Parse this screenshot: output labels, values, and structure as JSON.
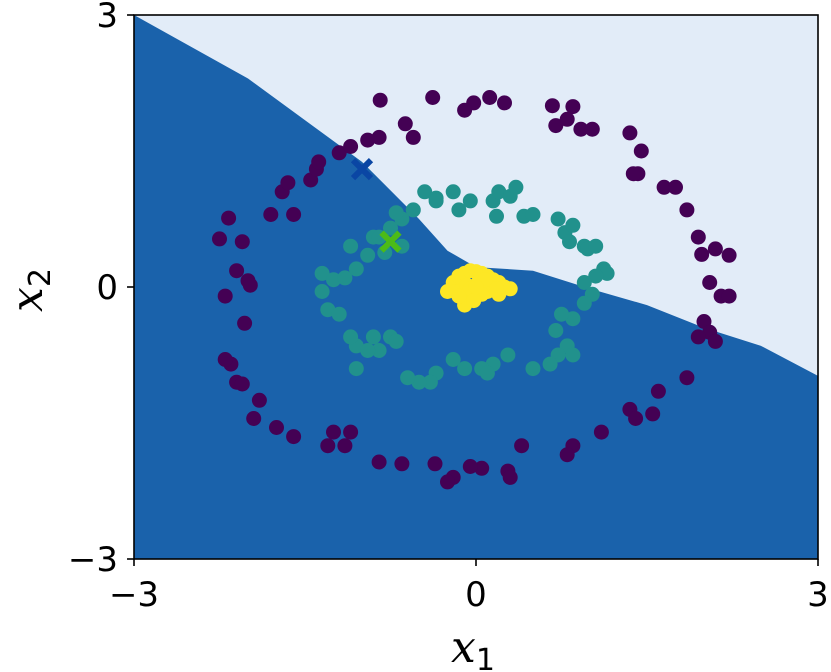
{
  "chart_data": {
    "type": "scatter",
    "title": "",
    "xlabel": "x",
    "xlabel_sub": "1",
    "ylabel": "x",
    "ylabel_sub": "2",
    "xlim": [
      -3,
      3
    ],
    "ylim": [
      -3,
      3
    ],
    "xticks": [
      "−3",
      "0",
      "3"
    ],
    "yticks": [
      "−3",
      "0",
      "3"
    ],
    "grid": false,
    "legend": "none",
    "decision_regions": {
      "upper_color": "#e2ecf8",
      "lower_color": "#1a62ab",
      "boundary": [
        [
          -3.0,
          3.0
        ],
        [
          -2.0,
          2.3
        ],
        [
          -1.0,
          1.38
        ],
        [
          -0.5,
          0.75
        ],
        [
          -0.25,
          0.4
        ],
        [
          0.0,
          0.22
        ],
        [
          0.5,
          0.18
        ],
        [
          1.0,
          -0.02
        ],
        [
          1.5,
          -0.2
        ],
        [
          2.0,
          -0.45
        ],
        [
          2.5,
          -0.65
        ],
        [
          3.0,
          -0.98
        ]
      ]
    },
    "series": [
      {
        "color": "#440154",
        "marker": "circle",
        "points": [
          [
            -0.84,
            2.06
          ],
          [
            -0.38,
            2.09
          ],
          [
            -0.02,
            2.03
          ],
          [
            0.12,
            2.09
          ],
          [
            0.25,
            2.03
          ],
          [
            0.67,
            2.0
          ],
          [
            0.85,
            1.99
          ],
          [
            0.92,
            1.74
          ],
          [
            1.35,
            1.7
          ],
          [
            1.45,
            1.5
          ],
          [
            0.7,
            1.78
          ],
          [
            0.8,
            1.85
          ],
          [
            1.02,
            1.74
          ],
          [
            1.42,
            1.25
          ],
          [
            1.38,
            1.25
          ],
          [
            1.65,
            1.1
          ],
          [
            1.75,
            1.1
          ],
          [
            1.85,
            0.85
          ],
          [
            1.95,
            0.55
          ],
          [
            2.1,
            0.42
          ],
          [
            1.98,
            0.36
          ],
          [
            2.22,
            0.35
          ],
          [
            2.05,
            0.05
          ],
          [
            2.15,
            -0.1
          ],
          [
            2.22,
            -0.1
          ],
          [
            2.0,
            -0.38
          ],
          [
            2.05,
            -0.5
          ],
          [
            2.1,
            -0.6
          ],
          [
            1.95,
            -0.55
          ],
          [
            1.85,
            -1.0
          ],
          [
            1.6,
            -1.15
          ],
          [
            1.35,
            -1.35
          ],
          [
            1.4,
            -1.45
          ],
          [
            1.55,
            -1.4
          ],
          [
            1.1,
            -1.6
          ],
          [
            0.85,
            -1.75
          ],
          [
            0.8,
            -1.85
          ],
          [
            0.4,
            -1.75
          ],
          [
            0.28,
            -2.03
          ],
          [
            0.3,
            -2.1
          ],
          [
            0.05,
            -2.0
          ],
          [
            -0.05,
            -1.98
          ],
          [
            -0.2,
            -2.1
          ],
          [
            -0.25,
            -2.15
          ],
          [
            -0.36,
            -1.95
          ],
          [
            -0.65,
            -1.95
          ],
          [
            -0.85,
            -1.93
          ],
          [
            -1.15,
            -1.75
          ],
          [
            -1.1,
            -1.6
          ],
          [
            -1.25,
            -1.6
          ],
          [
            -1.3,
            -1.75
          ],
          [
            -1.6,
            -1.65
          ],
          [
            -1.9,
            -1.25
          ],
          [
            -1.75,
            -1.55
          ],
          [
            -1.95,
            -1.45
          ],
          [
            -2.1,
            -1.05
          ],
          [
            -2.05,
            -1.07
          ],
          [
            -2.15,
            -0.85
          ],
          [
            -2.2,
            -0.8
          ],
          [
            -2.03,
            -0.4
          ],
          [
            -2.2,
            -0.1
          ],
          [
            -2.0,
            0.07
          ],
          [
            -1.98,
            0.02
          ],
          [
            -2.1,
            0.18
          ],
          [
            -2.05,
            0.5
          ],
          [
            -2.17,
            0.76
          ],
          [
            -2.25,
            0.53
          ],
          [
            -1.8,
            0.8
          ],
          [
            -1.6,
            0.8
          ],
          [
            -1.7,
            1.05
          ],
          [
            -1.65,
            1.15
          ],
          [
            -1.45,
            1.18
          ],
          [
            -1.4,
            1.3
          ],
          [
            -1.38,
            1.38
          ],
          [
            -1.2,
            1.48
          ],
          [
            -1.1,
            1.55
          ],
          [
            -0.95,
            1.62
          ],
          [
            -0.85,
            1.65
          ],
          [
            -0.62,
            1.8
          ],
          [
            -0.55,
            1.65
          ],
          [
            -0.1,
            1.95
          ]
        ]
      },
      {
        "color": "#21918c",
        "marker": "circle",
        "points": [
          [
            -0.45,
            1.05
          ],
          [
            -0.35,
            0.98
          ],
          [
            -0.15,
            0.85
          ],
          [
            -0.05,
            0.95
          ],
          [
            0.15,
            0.95
          ],
          [
            0.2,
            1.05
          ],
          [
            0.3,
            1.0
          ],
          [
            0.35,
            1.1
          ],
          [
            0.42,
            0.78
          ],
          [
            0.5,
            0.8
          ],
          [
            0.18,
            0.78
          ],
          [
            0.72,
            0.75
          ],
          [
            0.78,
            0.6
          ],
          [
            0.85,
            0.68
          ],
          [
            0.82,
            0.5
          ],
          [
            0.95,
            0.45
          ],
          [
            0.98,
            0.42
          ],
          [
            1.05,
            0.45
          ],
          [
            1.12,
            0.2
          ],
          [
            1.15,
            0.15
          ],
          [
            1.05,
            0.12
          ],
          [
            0.95,
            0.05
          ],
          [
            1.02,
            -0.08
          ],
          [
            0.95,
            -0.18
          ],
          [
            0.85,
            -0.35
          ],
          [
            0.75,
            -0.3
          ],
          [
            0.7,
            -0.48
          ],
          [
            0.8,
            -0.65
          ],
          [
            0.72,
            -0.75
          ],
          [
            0.85,
            -0.75
          ],
          [
            0.65,
            -0.85
          ],
          [
            0.5,
            -0.9
          ],
          [
            0.28,
            -0.75
          ],
          [
            0.15,
            -0.85
          ],
          [
            0.05,
            -0.9
          ],
          [
            -0.1,
            -0.9
          ],
          [
            -0.2,
            -0.8
          ],
          [
            -0.35,
            -0.95
          ],
          [
            -0.4,
            -1.05
          ],
          [
            -0.5,
            -1.05
          ],
          [
            -0.6,
            -1.0
          ],
          [
            -0.75,
            -0.55
          ],
          [
            -0.7,
            -0.6
          ],
          [
            -0.85,
            -0.7
          ],
          [
            -0.9,
            -0.55
          ],
          [
            -1.05,
            -0.65
          ],
          [
            -0.95,
            -0.7
          ],
          [
            -1.1,
            -0.55
          ],
          [
            -1.05,
            -0.9
          ],
          [
            -1.3,
            -0.25
          ],
          [
            -1.35,
            -0.05
          ],
          [
            -1.35,
            0.15
          ],
          [
            -1.25,
            0.08
          ],
          [
            -1.2,
            -0.3
          ],
          [
            -1.15,
            0.1
          ],
          [
            -1.05,
            0.2
          ],
          [
            -0.95,
            0.35
          ],
          [
            -1.1,
            0.45
          ],
          [
            -0.9,
            0.55
          ],
          [
            -0.75,
            0.65
          ],
          [
            -0.85,
            0.55
          ],
          [
            -0.65,
            0.75
          ],
          [
            -0.7,
            0.82
          ],
          [
            -0.55,
            0.85
          ],
          [
            -0.8,
            0.38
          ],
          [
            -0.65,
            0.45
          ],
          [
            -0.2,
            1.05
          ],
          [
            -0.35,
            0.95
          ],
          [
            0.1,
            -0.95
          ]
        ]
      },
      {
        "color": "#fde725",
        "marker": "circle",
        "points": [
          [
            -0.25,
            -0.05
          ],
          [
            -0.2,
            0.05
          ],
          [
            -0.15,
            0.12
          ],
          [
            -0.1,
            0.15
          ],
          [
            -0.05,
            0.18
          ],
          [
            0.0,
            0.17
          ],
          [
            0.05,
            0.15
          ],
          [
            0.1,
            0.12
          ],
          [
            0.15,
            0.08
          ],
          [
            0.2,
            0.05
          ],
          [
            0.25,
            0.0
          ],
          [
            0.3,
            -0.02
          ],
          [
            0.2,
            -0.08
          ],
          [
            0.1,
            -0.05
          ],
          [
            0.0,
            -0.1
          ],
          [
            -0.1,
            -0.12
          ],
          [
            -0.18,
            -0.05
          ],
          [
            -0.08,
            0.02
          ],
          [
            0.02,
            0.05
          ],
          [
            0.12,
            0.0
          ],
          [
            -0.05,
            -0.02
          ],
          [
            0.05,
            -0.08
          ],
          [
            -0.1,
            -0.2
          ],
          [
            -0.02,
            -0.15
          ],
          [
            0.08,
            0.08
          ],
          [
            -0.15,
            -0.1
          ],
          [
            0.18,
            -0.02
          ],
          [
            0.0,
            0.0
          ]
        ]
      }
    ],
    "markers": [
      {
        "x": -1.0,
        "y": 1.3,
        "color": "#0a46a4",
        "marker": "x"
      },
      {
        "x": -0.75,
        "y": 0.5,
        "color": "#4cbb17",
        "marker": "x"
      }
    ]
  }
}
